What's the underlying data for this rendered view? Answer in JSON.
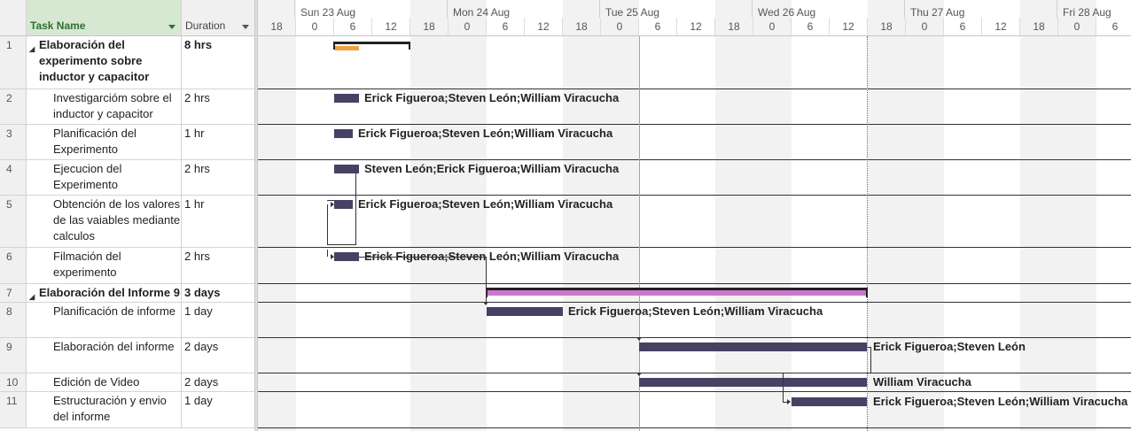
{
  "columns": {
    "id": "",
    "name": "Task Name",
    "duration": "Duration"
  },
  "timescale": {
    "days": [
      "Sun 23 Aug",
      "Mon 24 Aug",
      "Tue 25 Aug",
      "Wed 26 Aug",
      "Thu 27 Aug",
      "Fri 28 Aug"
    ],
    "hours": [
      "18",
      "0",
      "6",
      "12",
      "18",
      "0",
      "6",
      "12",
      "18",
      "0",
      "6",
      "12",
      "18",
      "0",
      "6",
      "12",
      "18",
      "0",
      "6",
      "12",
      "18",
      "0",
      "6"
    ]
  },
  "tasks": [
    {
      "id": "1",
      "name": "Elaboración del experimento sobre inductor y capacitor",
      "duration": "8 hrs",
      "summary": true,
      "resources": ""
    },
    {
      "id": "2",
      "name": "Investigarcióm sobre el inductor y capacitor",
      "duration": "2 hrs",
      "summary": false,
      "resources": "Erick Figueroa;Steven León;William Viracucha"
    },
    {
      "id": "3",
      "name": "Planificación del Experimento",
      "duration": "1 hr",
      "summary": false,
      "resources": "Erick Figueroa;Steven León;William Viracucha"
    },
    {
      "id": "4",
      "name": "Ejecucion del Experimento",
      "duration": "2 hrs",
      "summary": false,
      "resources": "Steven León;Erick Figueroa;William Viracucha"
    },
    {
      "id": "5",
      "name": "Obtención de los valores de las vaiables mediante calculos",
      "duration": "1 hr",
      "summary": false,
      "resources": "Erick Figueroa;Steven León;William Viracucha"
    },
    {
      "id": "6",
      "name": "Filmación del experimento",
      "duration": "2 hrs",
      "summary": false,
      "resources": "Erick Figueroa;Steven León;William Viracucha"
    },
    {
      "id": "7",
      "name": "Elaboración del Informe 9",
      "duration": "3 days",
      "summary": true,
      "resources": ""
    },
    {
      "id": "8",
      "name": "Planificación  de informe",
      "duration": "1 day",
      "summary": false,
      "resources": "Erick Figueroa;Steven León;William Viracucha"
    },
    {
      "id": "9",
      "name": "Elaboración del informe",
      "duration": "2 days",
      "summary": false,
      "resources": "Erick Figueroa;Steven León"
    },
    {
      "id": "10",
      "name": "Edición de Video",
      "duration": "2 days",
      "summary": false,
      "resources": "William Viracucha"
    },
    {
      "id": "11",
      "name": "Estructuración y envio del informe",
      "duration": "1 day",
      "summary": false,
      "resources": "Erick Figueroa;Steven León;William Viracucha"
    }
  ],
  "colors": {
    "task_bar": "#474164",
    "summary_bar_1": "#f0a040",
    "summary_bar_2": "#cc77cc",
    "header_accent": "#d6e8d2",
    "today_line": "#7bbf7b"
  }
}
